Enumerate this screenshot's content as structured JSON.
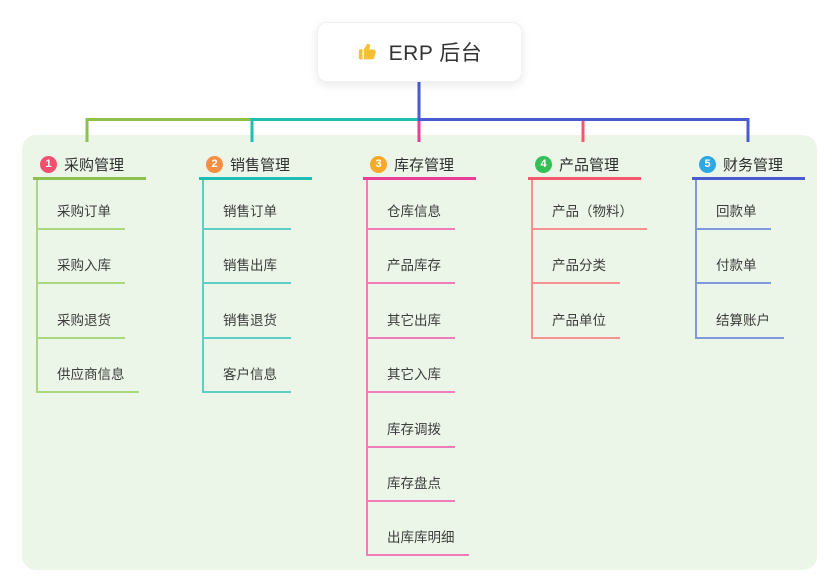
{
  "root": {
    "title": "ERP 后台",
    "icon": "thumbs-up-icon",
    "icon_color": "#F6BF34"
  },
  "canvas": {
    "background": "#FFFFFF",
    "panel_color": "#ECF6E8",
    "root_connector_color": "#4A5BD1"
  },
  "branches": [
    {
      "badge": "1",
      "label": "采购管理",
      "badge_color": "#F2506E",
      "line_color": "#8CC152",
      "sub_line_color": "#ABD780",
      "items": [
        "采购订单",
        "采购入库",
        "采购退货",
        "供应商信息"
      ]
    },
    {
      "badge": "2",
      "label": "销售管理",
      "badge_color": "#F78E44",
      "line_color": "#20BDB5",
      "sub_line_color": "#5FCEC6",
      "items": [
        "销售订单",
        "销售出库",
        "销售退货",
        "客户信息"
      ]
    },
    {
      "badge": "3",
      "label": "库存管理",
      "badge_color": "#F7A928",
      "line_color": "#E83E96",
      "sub_line_color": "#F07CB8",
      "items": [
        "仓库信息",
        "产品库存",
        "其它出库",
        "其它入库",
        "库存调拨",
        "库存盘点",
        "出库库明细"
      ]
    },
    {
      "badge": "4",
      "label": "产品管理",
      "badge_color": "#35BF57",
      "line_color": "#F4596B",
      "sub_line_color": "#F89292",
      "items": [
        "产品（物料）",
        "产品分类",
        "产品单位"
      ]
    },
    {
      "badge": "5",
      "label": "财务管理",
      "badge_color": "#2FA8E1",
      "line_color": "#4A5BD1",
      "sub_line_color": "#8098DC",
      "items": [
        "回款单",
        "付款单",
        "结算账户"
      ]
    }
  ]
}
